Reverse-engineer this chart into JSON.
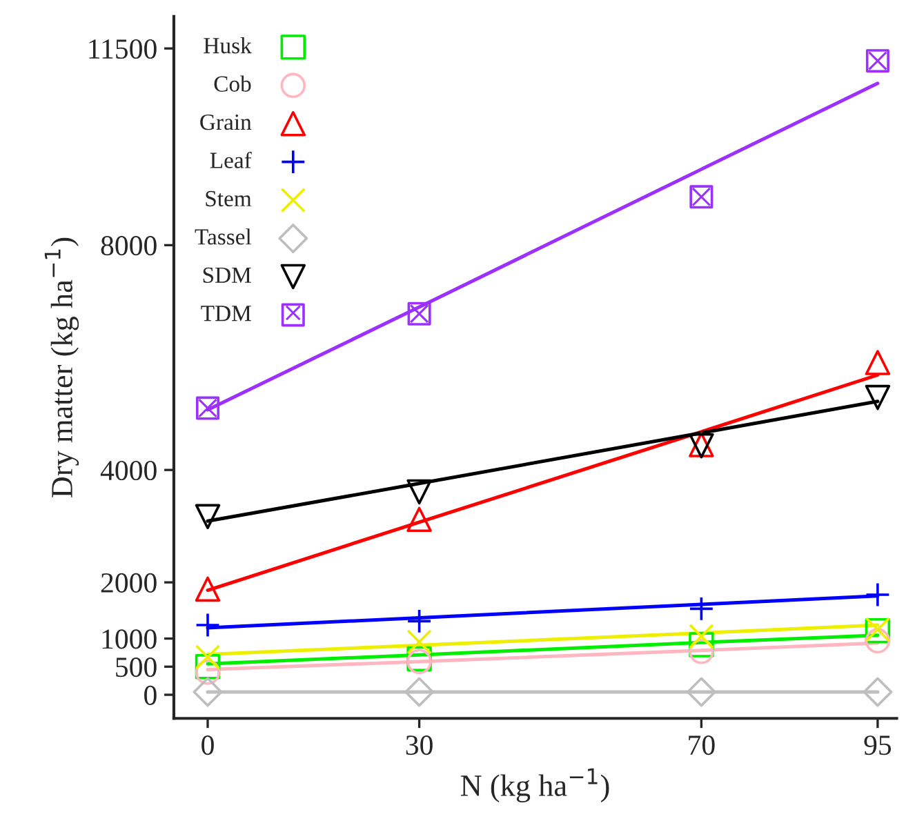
{
  "chart_data": {
    "type": "scatter",
    "xlabel": "N (kg ha$^{−1}$)",
    "ylabel": "Dry matter (kg ha$^{−1}$)",
    "x": [
      0,
      30,
      70,
      95
    ],
    "xlim": [
      -4.8,
      97.7
    ],
    "xticks": [
      0,
      30,
      70,
      95
    ],
    "ylim": [
      -420,
      12070
    ],
    "yticks": [
      0,
      500,
      1000,
      2000,
      4000,
      8000,
      11500
    ],
    "grid": false,
    "legend": "top left",
    "series": [
      {
        "name": "Husk",
        "color": "#00ee00",
        "marker": "square",
        "values": [
          500,
          640,
          890,
          1140
        ]
      },
      {
        "name": "Cob",
        "color": "#ffb6c1",
        "marker": "circle",
        "values": [
          400,
          590,
          770,
          960
        ]
      },
      {
        "name": "Grain",
        "color": "#ff0000",
        "marker": "triangle",
        "values": [
          1880,
          3120,
          4450,
          5910
        ]
      },
      {
        "name": "Leaf",
        "color": "#0000ff",
        "marker": "cross",
        "values": [
          1240,
          1310,
          1530,
          1780
        ]
      },
      {
        "name": "Stem",
        "color": "#eeee00",
        "marker": "x",
        "values": [
          670,
          940,
          1040,
          1160
        ]
      },
      {
        "name": "Tassel",
        "color": "#bebebe",
        "marker": "diamond",
        "values": [
          50,
          50,
          50,
          50
        ]
      },
      {
        "name": "SDM",
        "color": "#000000",
        "marker": "triangle_down",
        "values": [
          3170,
          3610,
          4430,
          5290
        ]
      },
      {
        "name": "TDM",
        "color": "#9b30ff",
        "marker": "square_x",
        "values": [
          5100,
          6780,
          8860,
          11280
        ]
      },
      {
        "type": "line",
        "color": "#00ee00",
        "values": [
          550,
          710,
          930,
          1060
        ]
      },
      {
        "type": "line",
        "color": "#ffb6c1",
        "values": [
          450,
          590,
          790,
          920
        ]
      },
      {
        "type": "line",
        "color": "#ff0000",
        "values": [
          1860,
          3070,
          4680,
          5690
        ]
      },
      {
        "type": "line",
        "color": "#0000ff",
        "values": [
          1190,
          1370,
          1610,
          1760
        ]
      },
      {
        "type": "line",
        "color": "#eeee00",
        "values": [
          720,
          880,
          1100,
          1240
        ]
      },
      {
        "type": "line",
        "color": "#bebebe",
        "values": [
          50,
          50,
          50,
          50
        ]
      },
      {
        "type": "line",
        "color": "#000000",
        "values": [
          3090,
          3760,
          4660,
          5220
        ]
      },
      {
        "type": "line",
        "color": "#9b30ff",
        "values": [
          5070,
          6900,
          9350,
          10880
        ]
      }
    ]
  }
}
